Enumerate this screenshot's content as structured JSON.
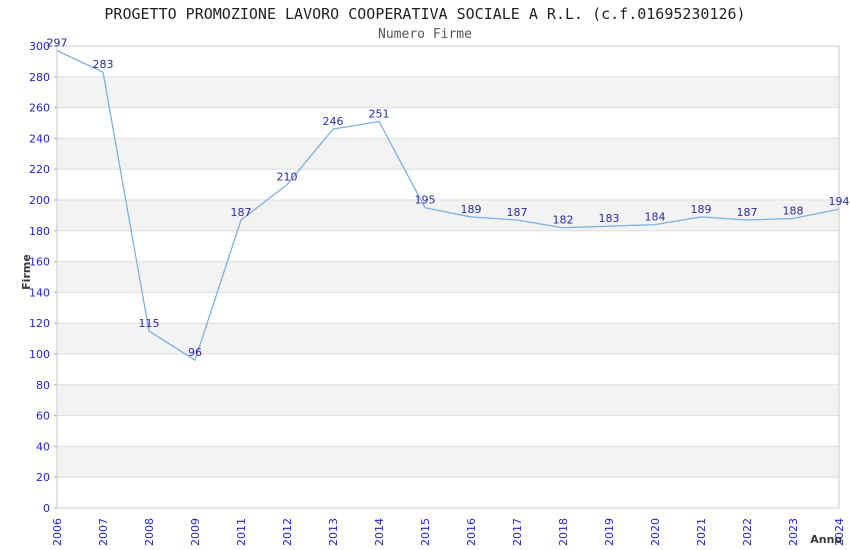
{
  "chart_data": {
    "type": "line",
    "title": "PROGETTO PROMOZIONE LAVORO COOPERATIVA SOCIALE A R.L. (c.f.01695230126)",
    "subtitle": "Numero Firme",
    "xlabel": "Anno",
    "ylabel": "Firme",
    "categories": [
      "2006",
      "2007",
      "2008",
      "2009",
      "2011",
      "2012",
      "2013",
      "2014",
      "2015",
      "2016",
      "2017",
      "2018",
      "2019",
      "2020",
      "2021",
      "2022",
      "2023",
      "2024"
    ],
    "values": [
      297,
      283,
      115,
      96,
      187,
      210,
      246,
      251,
      195,
      189,
      187,
      182,
      183,
      184,
      189,
      187,
      188,
      194
    ],
    "ylim": [
      0,
      300
    ],
    "ytick_step": 20,
    "grid": "horizontal-bands",
    "legend_position": "none",
    "colors": {
      "title": "#222222",
      "subtitle": "#555555",
      "band_fill": "#f3f3f3",
      "grid_line": "#dddddd",
      "plot_border": "#c9c9c9",
      "axis_tick": "#aaaaaa",
      "series_line": "#7fb0e3",
      "data_label": "#2a2a9e",
      "tick_label": "#2323cd",
      "axis_title": "#3a3a3a"
    }
  }
}
